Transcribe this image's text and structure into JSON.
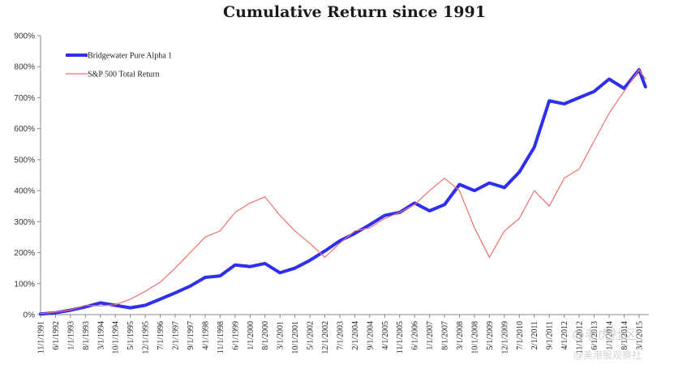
{
  "chart_data": {
    "type": "line",
    "title": "Cumulative Return since 1991",
    "xlabel": "",
    "ylabel": "",
    "ylim": [
      0,
      900
    ],
    "yticks": [
      "0%",
      "100%",
      "200%",
      "300%",
      "400%",
      "500%",
      "600%",
      "700%",
      "800%",
      "900%"
    ],
    "y_tick_values": [
      0,
      100,
      200,
      300,
      400,
      500,
      600,
      700,
      800,
      900
    ],
    "x_tick_labels": [
      "11/1/1991",
      "6/1/1992",
      "1/1/1993",
      "8/1/1993",
      "3/1/1994",
      "10/1/1994",
      "5/1/1995",
      "12/1/1995",
      "7/1/1996",
      "2/1/1997",
      "9/1/1997",
      "4/1/1998",
      "11/1/1998",
      "6/1/1999",
      "1/1/2000",
      "8/1/2000",
      "3/1/2001",
      "10/1/2001",
      "5/1/2002",
      "12/1/2002",
      "7/1/2003",
      "2/1/2004",
      "9/1/2004",
      "4/1/2005",
      "11/1/2005",
      "6/1/2006",
      "1/1/2007",
      "8/1/2007",
      "3/1/2008",
      "10/1/2008",
      "5/1/2009",
      "12/1/2009",
      "7/1/2010",
      "2/1/2011",
      "9/1/2011",
      "4/1/2012",
      "11/1/2012",
      "6/1/2013",
      "1/1/2014",
      "8/1/2014",
      "3/1/2015"
    ],
    "legend_position": "top-left",
    "grid": false,
    "series": [
      {
        "name": "Bridgewater Pure Alpha 1",
        "color": "#2f2ff0",
        "width": 4,
        "points": [
          [
            "11/1/1991",
            2
          ],
          [
            "6/1/1992",
            6
          ],
          [
            "1/1/1993",
            14
          ],
          [
            "8/1/1993",
            25
          ],
          [
            "3/1/1994",
            38
          ],
          [
            "10/1/1994",
            30
          ],
          [
            "5/1/1995",
            22
          ],
          [
            "12/1/1995",
            30
          ],
          [
            "7/1/1996",
            50
          ],
          [
            "2/1/1997",
            70
          ],
          [
            "9/1/1997",
            92
          ],
          [
            "4/1/1998",
            120
          ],
          [
            "11/1/1998",
            125
          ],
          [
            "6/1/1999",
            160
          ],
          [
            "1/1/2000",
            155
          ],
          [
            "8/1/2000",
            165
          ],
          [
            "3/1/2001",
            135
          ],
          [
            "10/1/2001",
            150
          ],
          [
            "5/1/2002",
            175
          ],
          [
            "12/1/2002",
            205
          ],
          [
            "7/1/2003",
            238
          ],
          [
            "2/1/2004",
            262
          ],
          [
            "9/1/2004",
            290
          ],
          [
            "4/1/2005",
            320
          ],
          [
            "11/1/2005",
            330
          ],
          [
            "6/1/2006",
            360
          ],
          [
            "1/1/2007",
            335
          ],
          [
            "8/1/2007",
            355
          ],
          [
            "3/1/2008",
            420
          ],
          [
            "10/1/2008",
            400
          ],
          [
            "5/1/2009",
            425
          ],
          [
            "12/1/2009",
            410
          ],
          [
            "7/1/2010",
            460
          ],
          [
            "2/1/2011",
            540
          ],
          [
            "9/1/2011",
            690
          ],
          [
            "4/1/2012",
            680
          ],
          [
            "11/1/2012",
            700
          ],
          [
            "6/1/2013",
            720
          ],
          [
            "1/1/2014",
            760
          ],
          [
            "8/1/2014",
            730
          ],
          [
            "3/1/2015",
            790
          ],
          [
            "6/1/2015",
            735
          ]
        ]
      },
      {
        "name": "S&P 500 Total Return",
        "color": "#f07070",
        "width": 1.2,
        "points": [
          [
            "11/1/1991",
            3
          ],
          [
            "6/1/1992",
            8
          ],
          [
            "1/1/1993",
            15
          ],
          [
            "8/1/1993",
            30
          ],
          [
            "3/1/1994",
            28
          ],
          [
            "10/1/1994",
            32
          ],
          [
            "5/1/1995",
            50
          ],
          [
            "12/1/1995",
            75
          ],
          [
            "7/1/1996",
            105
          ],
          [
            "2/1/1997",
            150
          ],
          [
            "9/1/1997",
            200
          ],
          [
            "4/1/1998",
            250
          ],
          [
            "11/1/1998",
            270
          ],
          [
            "6/1/1999",
            330
          ],
          [
            "1/1/2000",
            360
          ],
          [
            "8/1/2000",
            380
          ],
          [
            "3/1/2001",
            320
          ],
          [
            "10/1/2001",
            270
          ],
          [
            "5/1/2002",
            230
          ],
          [
            "12/1/2002",
            185
          ],
          [
            "7/1/2003",
            230
          ],
          [
            "2/1/2004",
            270
          ],
          [
            "9/1/2004",
            280
          ],
          [
            "4/1/2005",
            310
          ],
          [
            "11/1/2005",
            330
          ],
          [
            "6/1/2006",
            355
          ],
          [
            "1/1/2007",
            400
          ],
          [
            "8/1/2007",
            440
          ],
          [
            "3/1/2008",
            400
          ],
          [
            "10/1/2008",
            280
          ],
          [
            "5/1/2009",
            185
          ],
          [
            "12/1/2009",
            270
          ],
          [
            "7/1/2010",
            310
          ],
          [
            "2/1/2011",
            400
          ],
          [
            "9/1/2011",
            350
          ],
          [
            "4/1/2012",
            440
          ],
          [
            "11/1/2012",
            470
          ],
          [
            "6/1/2013",
            560
          ],
          [
            "1/1/2014",
            650
          ],
          [
            "8/1/2014",
            720
          ],
          [
            "3/1/2015",
            790
          ],
          [
            "6/1/2015",
            760
          ]
        ]
      }
    ]
  },
  "watermark": {
    "line1": "@老虎社区",
    "line2": "@美港股观察社"
  }
}
